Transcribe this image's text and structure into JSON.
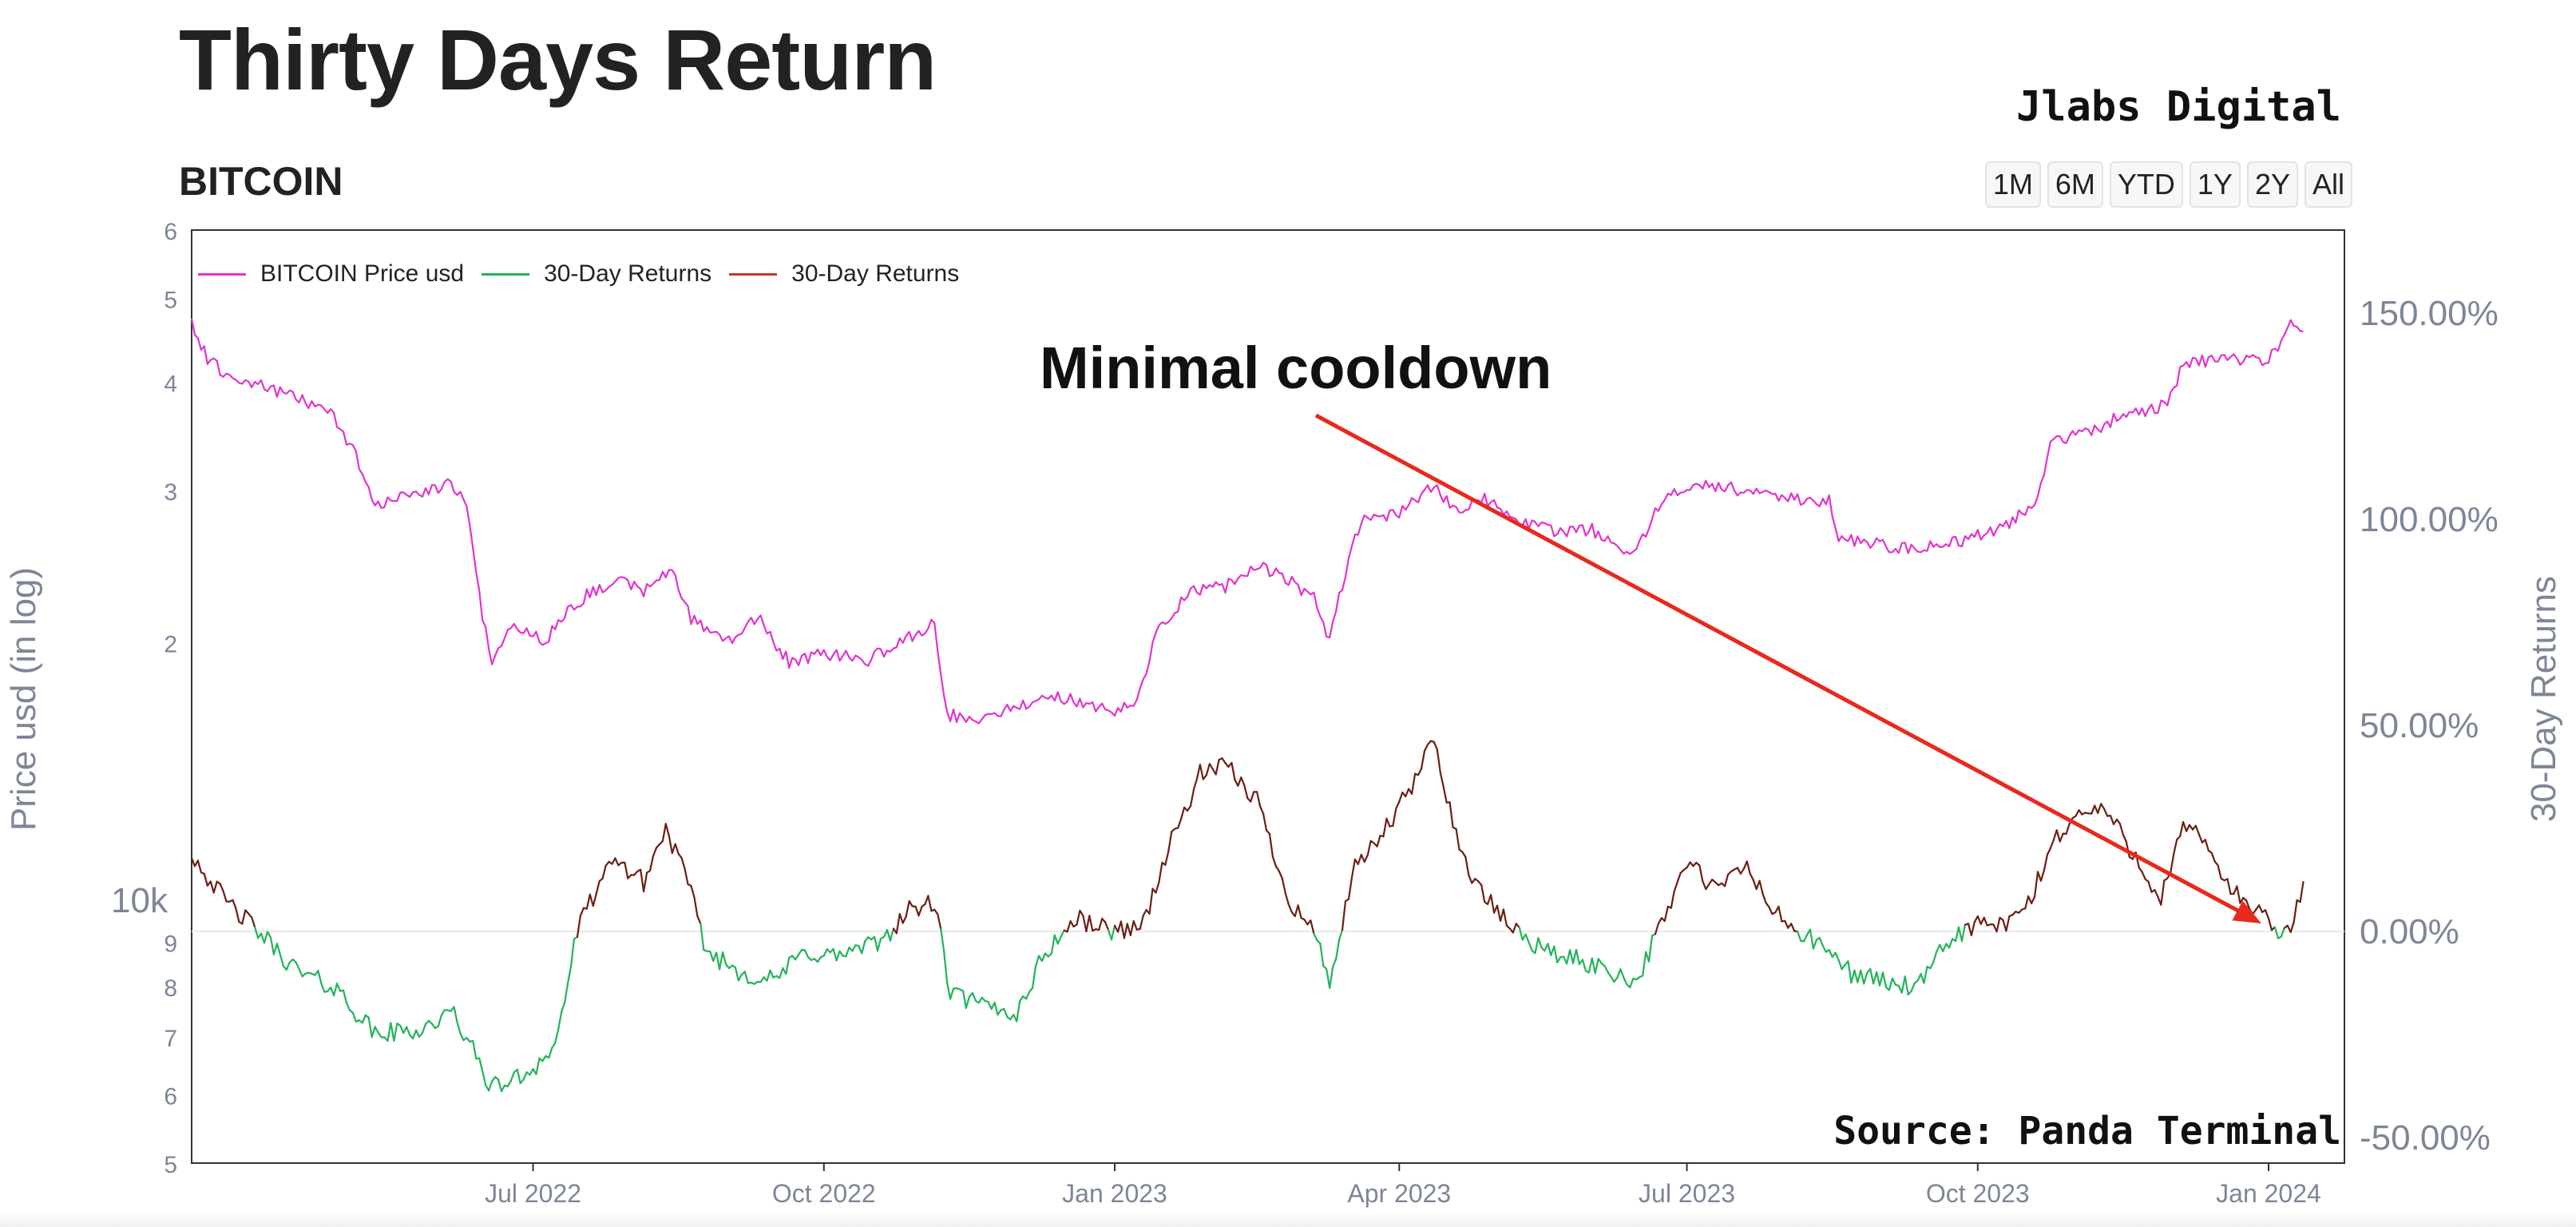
{
  "header": {
    "title": "Thirty Days Return",
    "subtitle": "BITCOIN",
    "brand": "Jlabs Digital"
  },
  "range_selector": [
    "1M",
    "6M",
    "YTD",
    "1Y",
    "2Y",
    "All"
  ],
  "annotation": "Minimal cooldown",
  "source": "Source: Panda Terminal",
  "colors": {
    "price": "#e233cf",
    "returns_positive": "#6b1f12",
    "returns_negative": "#22b35a",
    "arrow": "#e8291c",
    "axis_text": "#7e8598"
  },
  "chart_data": {
    "type": "line",
    "title": "Thirty Days Return",
    "subtitle": "BITCOIN",
    "x_range": [
      "2022-03-15",
      "2024-01-25"
    ],
    "x_ticks": [
      "Jul 2022",
      "Oct 2022",
      "Jan 2023",
      "Apr 2023",
      "Jul 2023",
      "Oct 2023",
      "Jan 2024"
    ],
    "y_left": {
      "label": "Price usd (in log)",
      "scale": "log",
      "range": [
        5000,
        60000
      ],
      "tick_labels": [
        "5",
        "6",
        "7",
        "8",
        "9",
        "10k",
        "2",
        "3",
        "4",
        "5",
        "6"
      ]
    },
    "y_right": {
      "label": "30-Day Returns",
      "range": [
        -50,
        150
      ],
      "tick_labels": [
        "-50.00%",
        "0.00%",
        "50.00%",
        "100.00%",
        "150.00%"
      ]
    },
    "legend": [
      "BITCOIN Price usd",
      "30-Day Returns",
      "30-Day Returns"
    ],
    "legend_position": "top-left",
    "grid": false,
    "series": [
      {
        "name": "BITCOIN Price usd",
        "axis": "left",
        "points": [
          [
            "2022-03-15",
            47000
          ],
          [
            "2022-03-20",
            42500
          ],
          [
            "2022-03-28",
            40500
          ],
          [
            "2022-04-08",
            39500
          ],
          [
            "2022-04-20",
            38000
          ],
          [
            "2022-04-28",
            37000
          ],
          [
            "2022-05-06",
            33000
          ],
          [
            "2022-05-12",
            28500
          ],
          [
            "2022-05-20",
            29700
          ],
          [
            "2022-05-28",
            30000
          ],
          [
            "2022-06-05",
            30500
          ],
          [
            "2022-06-10",
            29000
          ],
          [
            "2022-06-13",
            24000
          ],
          [
            "2022-06-15",
            21500
          ],
          [
            "2022-06-18",
            19000
          ],
          [
            "2022-06-25",
            21000
          ],
          [
            "2022-07-05",
            20000
          ],
          [
            "2022-07-10",
            21500
          ],
          [
            "2022-07-20",
            23000
          ],
          [
            "2022-07-28",
            23500
          ],
          [
            "2022-08-05",
            23000
          ],
          [
            "2022-08-14",
            24200
          ],
          [
            "2022-08-20",
            21300
          ],
          [
            "2022-09-01",
            20000
          ],
          [
            "2022-09-10",
            21500
          ],
          [
            "2022-09-13",
            20500
          ],
          [
            "2022-09-20",
            19000
          ],
          [
            "2022-10-01",
            19400
          ],
          [
            "2022-10-15",
            19100
          ],
          [
            "2022-10-25",
            20000
          ],
          [
            "2022-11-05",
            21000
          ],
          [
            "2022-11-09",
            16500
          ],
          [
            "2022-11-20",
            16300
          ],
          [
            "2022-12-01",
            16900
          ],
          [
            "2022-12-15",
            17300
          ],
          [
            "2022-12-31",
            16600
          ],
          [
            "2023-01-08",
            17000
          ],
          [
            "2023-01-14",
            20500
          ],
          [
            "2023-01-25",
            23000
          ],
          [
            "2023-02-05",
            23200
          ],
          [
            "2023-02-15",
            24500
          ],
          [
            "2023-02-22",
            24000
          ],
          [
            "2023-03-05",
            22500
          ],
          [
            "2023-03-10",
            20200
          ],
          [
            "2023-03-16",
            25000
          ],
          [
            "2023-03-20",
            27800
          ],
          [
            "2023-04-01",
            28300
          ],
          [
            "2023-04-12",
            30300
          ],
          [
            "2023-04-20",
            28200
          ],
          [
            "2023-04-28",
            29400
          ],
          [
            "2023-05-08",
            27600
          ],
          [
            "2023-05-20",
            26900
          ],
          [
            "2023-06-01",
            27000
          ],
          [
            "2023-06-15",
            25300
          ],
          [
            "2023-06-21",
            28600
          ],
          [
            "2023-07-01",
            30500
          ],
          [
            "2023-07-15",
            30200
          ],
          [
            "2023-08-01",
            29300
          ],
          [
            "2023-08-15",
            29200
          ],
          [
            "2023-08-18",
            26400
          ],
          [
            "2023-09-01",
            25900
          ],
          [
            "2023-09-12",
            25600
          ],
          [
            "2023-09-25",
            26200
          ],
          [
            "2023-10-10",
            27200
          ],
          [
            "2023-10-20",
            29500
          ],
          [
            "2023-10-24",
            34000
          ],
          [
            "2023-11-05",
            35000
          ],
          [
            "2023-11-15",
            36500
          ],
          [
            "2023-11-30",
            37700
          ],
          [
            "2023-12-05",
            42000
          ],
          [
            "2023-12-15",
            42500
          ],
          [
            "2023-12-31",
            42300
          ],
          [
            "2024-01-05",
            44000
          ],
          [
            "2024-01-08",
            46500
          ],
          [
            "2024-01-12",
            45800
          ]
        ]
      },
      {
        "name": "30-Day Returns",
        "axis": "right",
        "points": [
          [
            "2022-03-15",
            19
          ],
          [
            "2022-03-25",
            8
          ],
          [
            "2022-04-05",
            0
          ],
          [
            "2022-04-18",
            -10
          ],
          [
            "2022-04-30",
            -14
          ],
          [
            "2022-05-12",
            -25
          ],
          [
            "2022-05-25",
            -24
          ],
          [
            "2022-06-06",
            -20
          ],
          [
            "2022-06-18",
            -38
          ],
          [
            "2022-06-28",
            -35
          ],
          [
            "2022-07-08",
            -28
          ],
          [
            "2022-07-15",
            0
          ],
          [
            "2022-07-22",
            12
          ],
          [
            "2022-07-28",
            17
          ],
          [
            "2022-08-05",
            12
          ],
          [
            "2022-08-12",
            25
          ],
          [
            "2022-08-18",
            14
          ],
          [
            "2022-08-25",
            -5
          ],
          [
            "2022-09-05",
            -10
          ],
          [
            "2022-09-15",
            -12
          ],
          [
            "2022-09-25",
            -5
          ],
          [
            "2022-10-05",
            -6
          ],
          [
            "2022-10-18",
            -3
          ],
          [
            "2022-10-28",
            5
          ],
          [
            "2022-11-05",
            7
          ],
          [
            "2022-11-10",
            -15
          ],
          [
            "2022-11-20",
            -18
          ],
          [
            "2022-12-01",
            -20
          ],
          [
            "2022-12-10",
            -5
          ],
          [
            "2022-12-20",
            3
          ],
          [
            "2023-01-01",
            0
          ],
          [
            "2023-01-10",
            2
          ],
          [
            "2023-01-18",
            20
          ],
          [
            "2023-01-28",
            38
          ],
          [
            "2023-02-05",
            40
          ],
          [
            "2023-02-15",
            32
          ],
          [
            "2023-02-25",
            8
          ],
          [
            "2023-03-05",
            0
          ],
          [
            "2023-03-10",
            -12
          ],
          [
            "2023-03-18",
            15
          ],
          [
            "2023-03-28",
            25
          ],
          [
            "2023-04-05",
            35
          ],
          [
            "2023-04-12",
            47
          ],
          [
            "2023-04-20",
            20
          ],
          [
            "2023-04-28",
            8
          ],
          [
            "2023-05-08",
            0
          ],
          [
            "2023-05-18",
            -5
          ],
          [
            "2023-06-01",
            -8
          ],
          [
            "2023-06-15",
            -12
          ],
          [
            "2023-06-22",
            0
          ],
          [
            "2023-07-01",
            17
          ],
          [
            "2023-07-10",
            10
          ],
          [
            "2023-07-20",
            16
          ],
          [
            "2023-07-28",
            5
          ],
          [
            "2023-08-05",
            0
          ],
          [
            "2023-08-15",
            -5
          ],
          [
            "2023-08-22",
            -10
          ],
          [
            "2023-09-01",
            -12
          ],
          [
            "2023-09-12",
            -14
          ],
          [
            "2023-09-22",
            -2
          ],
          [
            "2023-10-01",
            2
          ],
          [
            "2023-10-10",
            1
          ],
          [
            "2023-10-18",
            8
          ],
          [
            "2023-10-25",
            22
          ],
          [
            "2023-11-01",
            28
          ],
          [
            "2023-11-10",
            30
          ],
          [
            "2023-11-20",
            18
          ],
          [
            "2023-11-28",
            8
          ],
          [
            "2023-12-05",
            25
          ],
          [
            "2023-12-12",
            22
          ],
          [
            "2023-12-20",
            10
          ],
          [
            "2023-12-28",
            5
          ],
          [
            "2024-01-04",
            0
          ],
          [
            "2024-01-08",
            -1
          ],
          [
            "2024-01-12",
            12
          ]
        ]
      }
    ]
  }
}
